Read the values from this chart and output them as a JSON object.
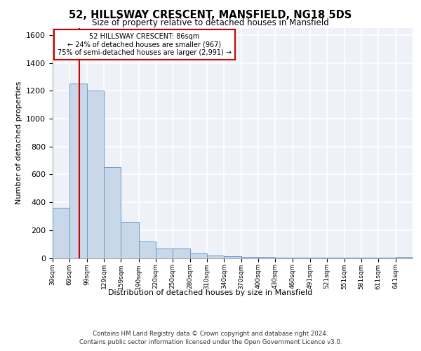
{
  "title_line1": "52, HILLSWAY CRESCENT, MANSFIELD, NG18 5DS",
  "title_line2": "Size of property relative to detached houses in Mansfield",
  "xlabel": "Distribution of detached houses by size in Mansfield",
  "ylabel": "Number of detached properties",
  "bin_labels": [
    "39sqm",
    "69sqm",
    "99sqm",
    "129sqm",
    "159sqm",
    "190sqm",
    "220sqm",
    "250sqm",
    "280sqm",
    "310sqm",
    "340sqm",
    "370sqm",
    "400sqm",
    "430sqm",
    "460sqm",
    "491sqm",
    "521sqm",
    "551sqm",
    "581sqm",
    "611sqm",
    "641sqm"
  ],
  "bin_edges": [
    39,
    69,
    99,
    129,
    159,
    190,
    220,
    250,
    280,
    310,
    340,
    370,
    400,
    430,
    460,
    491,
    521,
    551,
    581,
    611,
    641,
    671
  ],
  "bar_values": [
    360,
    1250,
    1200,
    650,
    260,
    120,
    70,
    70,
    35,
    20,
    15,
    10,
    10,
    5,
    5,
    5,
    5,
    5,
    5,
    5,
    10
  ],
  "bar_color": "#c8d8e8",
  "bar_edge_color": "#6699cc",
  "property_size": 86,
  "vline_color": "#cc0000",
  "annotation_text": "52 HILLSWAY CRESCENT: 86sqm\n← 24% of detached houses are smaller (967)\n75% of semi-detached houses are larger (2,991) →",
  "annotation_box_color": "#ffffff",
  "annotation_box_edge": "#cc0000",
  "ylim": [
    0,
    1650
  ],
  "yticks": [
    0,
    200,
    400,
    600,
    800,
    1000,
    1200,
    1400,
    1600
  ],
  "background_color": "#eef2f8",
  "grid_color": "#ffffff",
  "footer_line1": "Contains HM Land Registry data © Crown copyright and database right 2024.",
  "footer_line2": "Contains public sector information licensed under the Open Government Licence v3.0."
}
